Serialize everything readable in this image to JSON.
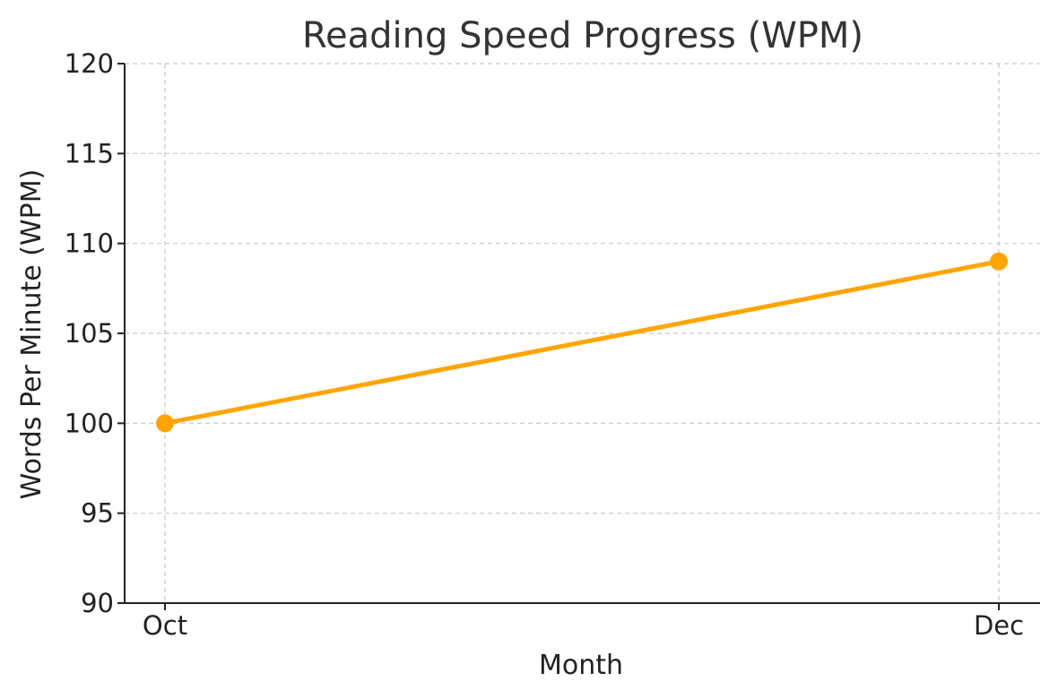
{
  "chart_data": {
    "type": "line",
    "title": "Reading Speed Progress (WPM)",
    "xlabel": "Month",
    "ylabel": "Words Per Minute (WPM)",
    "categories": [
      "Oct",
      "Dec"
    ],
    "series": [
      {
        "values": [
          100,
          109
        ],
        "color": "#FFA500"
      }
    ],
    "ylim": [
      90,
      120
    ],
    "yticks": [
      90,
      95,
      100,
      105,
      110,
      115,
      120
    ],
    "grid": true
  }
}
